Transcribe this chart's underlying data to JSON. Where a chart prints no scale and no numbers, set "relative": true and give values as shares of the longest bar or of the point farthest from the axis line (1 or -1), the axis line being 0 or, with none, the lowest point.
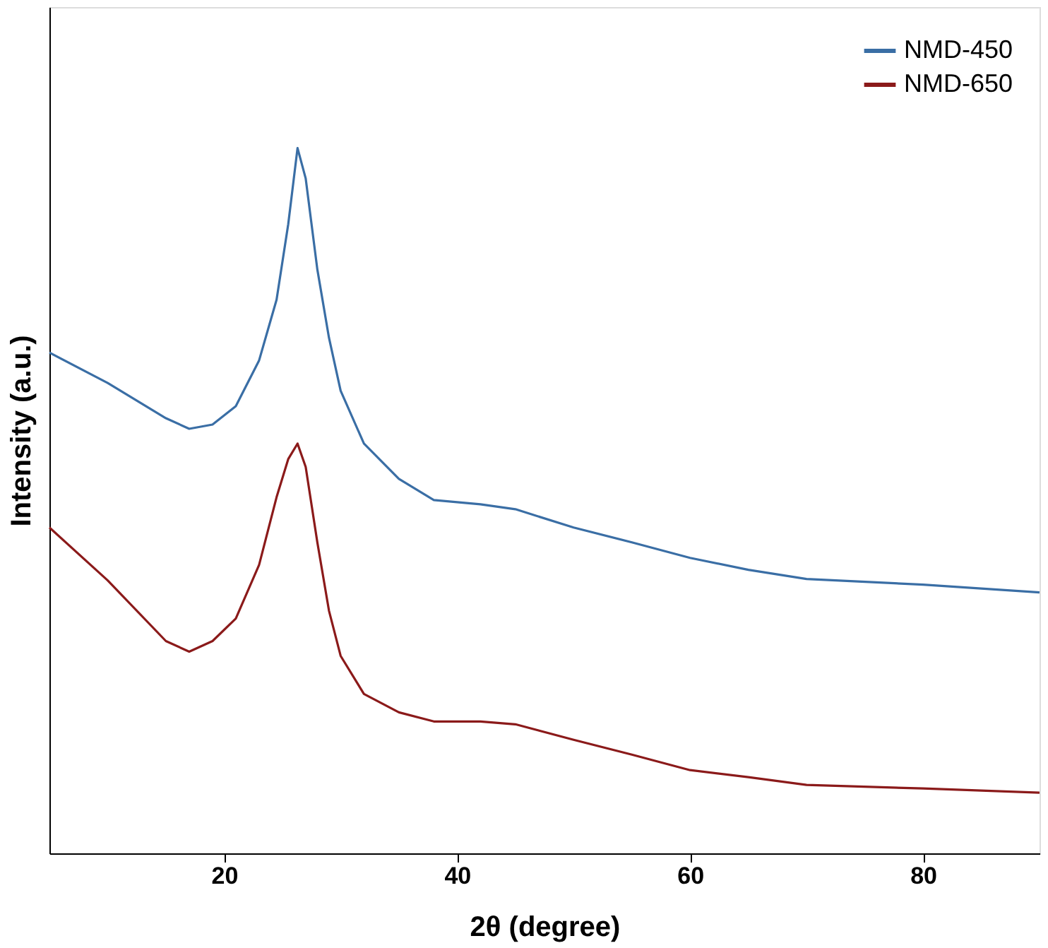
{
  "chart_data": {
    "type": "line",
    "xlabel": "2θ (degree)",
    "ylabel": "Intensity (a.u.)",
    "relative": true,
    "xlim": [
      5,
      90
    ],
    "xticks": [
      20,
      40,
      60,
      80
    ],
    "legend": "top right",
    "grid": false,
    "x": [
      5,
      10,
      15,
      17,
      19,
      21,
      23,
      24.5,
      25.5,
      26.3,
      27,
      28,
      29,
      30,
      32,
      35,
      38,
      42,
      45,
      50,
      55,
      60,
      65,
      70,
      80,
      90
    ],
    "series": [
      {
        "name": "NMD-450",
        "color": "#3a6ea5",
        "values": [
          0.71,
          0.667,
          0.617,
          0.602,
          0.608,
          0.634,
          0.699,
          0.785,
          0.892,
          1.0,
          0.957,
          0.828,
          0.731,
          0.656,
          0.581,
          0.531,
          0.501,
          0.495,
          0.488,
          0.462,
          0.441,
          0.419,
          0.402,
          0.389,
          0.381,
          0.37
        ]
      },
      {
        "name": "NMD-650",
        "color": "#8b1a1a",
        "values": [
          0.462,
          0.387,
          0.301,
          0.286,
          0.301,
          0.333,
          0.409,
          0.505,
          0.559,
          0.581,
          0.548,
          0.441,
          0.344,
          0.28,
          0.226,
          0.2,
          0.187,
          0.187,
          0.183,
          0.161,
          0.14,
          0.118,
          0.108,
          0.097,
          0.092,
          0.086
        ]
      }
    ]
  }
}
